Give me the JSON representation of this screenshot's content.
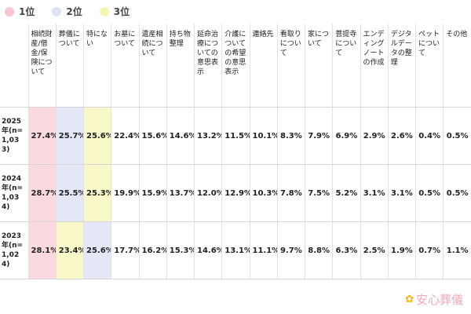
{
  "legend": [
    {
      "label": "1位",
      "color": "#f7c6cf"
    },
    {
      "label": "2位",
      "color": "#dde2f5"
    },
    {
      "label": "3位",
      "color": "#f6f5b8"
    }
  ],
  "colors": {
    "rank1": "#fadadf",
    "rank2": "#e3e7f6",
    "rank3": "#f8f8c9"
  },
  "logo": {
    "text": "安心葬儀",
    "icon": "flower-icon"
  },
  "chart_data": {
    "type": "table",
    "columns": [
      "相続財産/借金/保険について",
      "葬儀について",
      "特にない",
      "お墓について",
      "遺産相続について",
      "持ち物整理",
      "延命治療についての意思表示",
      "介護についての希望の意思表示",
      "連絡先",
      "看取りについて",
      "家について",
      "菩提寺について",
      "エンディングノートの作成",
      "デジタルデータの整理",
      "ペットについて",
      "その他"
    ],
    "rows": [
      {
        "label": "2025年(n=1,033)",
        "values": [
          "27.4%",
          "25.7%",
          "25.6%",
          "22.4%",
          "15.6%",
          "14.6%",
          "13.2%",
          "11.5%",
          "10.1%",
          "8.3%",
          "7.9%",
          "6.9%",
          "2.9%",
          "2.6%",
          "0.4%",
          "0.5%"
        ],
        "ranks": [
          1,
          2,
          3,
          0,
          0,
          0,
          0,
          0,
          0,
          0,
          0,
          0,
          0,
          0,
          0,
          0
        ]
      },
      {
        "label": "2024年(n=1,034)",
        "values": [
          "28.7%",
          "25.5%",
          "25.3%",
          "19.9%",
          "15.9%",
          "13.7%",
          "12.0%",
          "12.9%",
          "10.3%",
          "7.8%",
          "7.5%",
          "5.2%",
          "3.1%",
          "3.1%",
          "0.5%",
          "0.5%"
        ],
        "ranks": [
          1,
          2,
          3,
          0,
          0,
          0,
          0,
          0,
          0,
          0,
          0,
          0,
          0,
          0,
          0,
          0
        ]
      },
      {
        "label": "2023年(n=1,024)",
        "values": [
          "28.1%",
          "23.4%",
          "25.6%",
          "17.7%",
          "16.2%",
          "15.3%",
          "14.6%",
          "13.1%",
          "11.1%",
          "9.7%",
          "8.8%",
          "6.3%",
          "2.5%",
          "1.9%",
          "0.7%",
          "1.1%"
        ],
        "ranks": [
          1,
          3,
          2,
          0,
          0,
          0,
          0,
          0,
          0,
          0,
          0,
          0,
          0,
          0,
          0,
          0
        ]
      }
    ]
  }
}
